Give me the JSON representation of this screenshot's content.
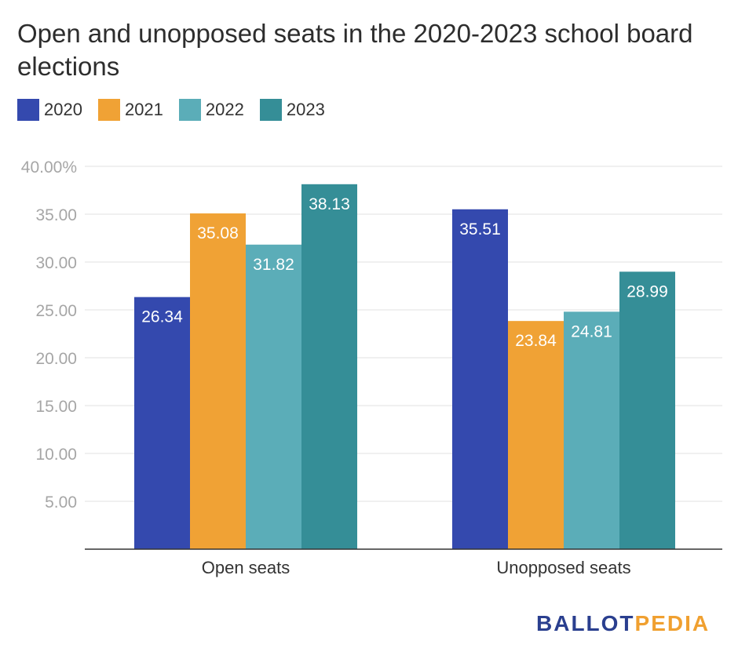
{
  "chart_data": {
    "type": "bar",
    "title": "Open and unopposed seats in the 2020-2023 school board elections",
    "categories": [
      "Open seats",
      "Unopposed seats"
    ],
    "series": [
      {
        "name": "2020",
        "color": "#3449ae",
        "values": [
          26.34,
          35.51
        ]
      },
      {
        "name": "2021",
        "color": "#f0a235",
        "values": [
          35.08,
          23.84
        ]
      },
      {
        "name": "2022",
        "color": "#5badb8",
        "values": [
          31.82,
          24.81
        ]
      },
      {
        "name": "2023",
        "color": "#358e97",
        "values": [
          38.13,
          28.99
        ]
      }
    ],
    "ylim": [
      0,
      40
    ],
    "yticks": [
      {
        "value": 5,
        "label": "5.00"
      },
      {
        "value": 10,
        "label": "10.00"
      },
      {
        "value": 15,
        "label": "15.00"
      },
      {
        "value": 20,
        "label": "20.00"
      },
      {
        "value": 25,
        "label": "25.00"
      },
      {
        "value": 30,
        "label": "30.00"
      },
      {
        "value": 35,
        "label": "35.00"
      },
      {
        "value": 40,
        "label": "40.00%"
      }
    ],
    "data_labels": [
      [
        "26.34",
        "35.51"
      ],
      [
        "35.08",
        "23.84"
      ],
      [
        "31.82",
        "24.81"
      ],
      [
        "38.13",
        "28.99"
      ]
    ],
    "legend": "top-left",
    "grid": true
  },
  "logo": {
    "part1": "BALLOT",
    "part2": "PEDIA"
  }
}
